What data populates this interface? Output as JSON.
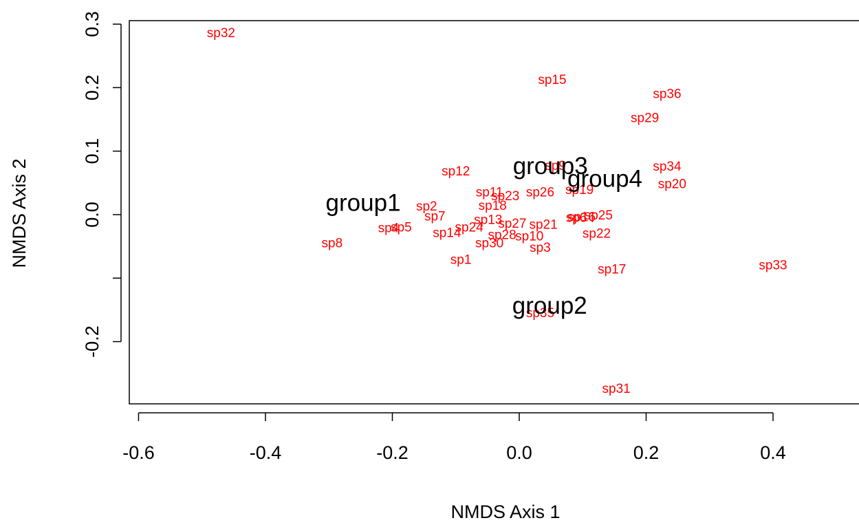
{
  "chart_data": {
    "type": "scatter",
    "xlabel": "NMDS Axis 1",
    "ylabel": "NMDS Axis 2",
    "xlim": [
      -0.6146,
      0.5355
    ],
    "ylim": [
      -0.298,
      0.3055
    ],
    "xticks": [
      -0.6,
      -0.4,
      -0.2,
      {
        "value": 0,
        "label": "0.0"
      },
      0.2,
      0.4
    ],
    "yticks": [
      -0.2,
      {
        "value": -0.1,
        "label": null
      },
      {
        "value": 0,
        "label": "0.0"
      },
      0.1,
      0.2,
      0.3
    ],
    "series": [
      {
        "color": "#ff0000",
        "labels": [
          "sp32",
          "sp15",
          "sp36",
          "sp29",
          "sp34",
          "sp20",
          "sp12",
          "sp9",
          "sp19",
          "sp26",
          "sp23",
          "sp11",
          "sp18",
          "sp2",
          "sp7",
          "sp13",
          "sp6",
          "sp16",
          "sp25",
          "sp22",
          "sp21",
          "sp27",
          "sp24",
          "sp4",
          "sp5",
          "sp8",
          "sp1",
          "sp3",
          "sp10",
          "sp30",
          "sp28",
          "sp14",
          "sp17",
          "sp33",
          "sp35",
          "sp31"
        ],
        "x": [
          -0.47,
          0.052,
          0.233,
          0.198,
          0.233,
          0.241,
          -0.1,
          0.057,
          0.095,
          0.033,
          -0.022,
          -0.047,
          -0.042,
          -0.146,
          -0.133,
          -0.049,
          0.09,
          0.098,
          0.125,
          0.122,
          0.038,
          -0.011,
          -0.079,
          -0.206,
          -0.186,
          -0.295,
          -0.092,
          0.033,
          0.016,
          -0.047,
          -0.027,
          -0.114,
          0.146,
          0.4,
          0.033,
          0.153
        ],
        "y": [
          0.285,
          0.211,
          0.189,
          0.151,
          0.075,
          0.047,
          0.067,
          0.076,
          0.038,
          0.034,
          0.028,
          0.034,
          0.013,
          0.012,
          -0.004,
          -0.009,
          -0.006,
          -0.005,
          -0.002,
          -0.031,
          -0.017,
          -0.015,
          -0.021,
          -0.022,
          -0.021,
          -0.046,
          -0.072,
          -0.053,
          -0.035,
          -0.046,
          -0.033,
          -0.03,
          -0.087,
          -0.081,
          -0.156,
          -0.275
        ]
      },
      {
        "color": "#000000",
        "labels": [
          "group1",
          "group2",
          "group3",
          "group4"
        ],
        "x": [
          -0.246,
          0.048,
          0.049,
          0.135
        ],
        "y": [
          0.016,
          -0.146,
          0.074,
          0.054
        ]
      }
    ]
  }
}
